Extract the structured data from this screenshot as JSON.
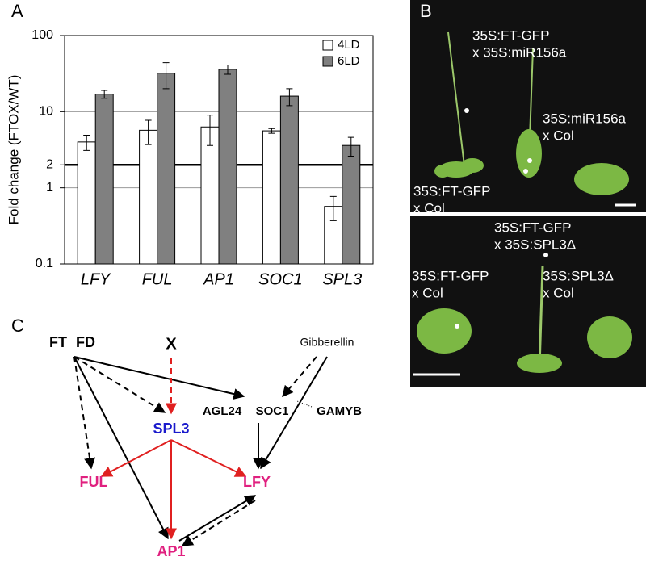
{
  "panels": [
    "A",
    "B",
    "C"
  ],
  "chart_data": {
    "type": "bar",
    "scale": "log",
    "ylabel": "Fold change (FTOX/WT)",
    "categories": [
      "LFY",
      "FUL",
      "AP1",
      "SOC1",
      "SPL3"
    ],
    "series": [
      {
        "name": "4LD",
        "color": "#ffffff",
        "values": [
          4.0,
          5.7,
          6.3,
          5.6,
          0.57
        ],
        "errors": [
          0.9,
          2.0,
          2.7,
          0.4,
          0.2
        ]
      },
      {
        "name": "6LD",
        "color": "#808080",
        "values": [
          17,
          32,
          36,
          16,
          3.6
        ],
        "errors": [
          2,
          12,
          5,
          4,
          1.0
        ]
      }
    ],
    "ylim": [
      0.1,
      100
    ],
    "yticks": [
      0.1,
      1,
      2,
      10,
      100
    ],
    "grid": true,
    "threshold_line": 2,
    "legend": "upper-right"
  },
  "photos": [
    {
      "labels": [
        [
          "35S:FT-GFP",
          "x 35S:miR156a"
        ],
        [
          "35S:miR156a",
          "x Col"
        ],
        [
          "35S:FT-GFP",
          "x Col"
        ]
      ]
    },
    {
      "labels": [
        [
          "35S:FT-GFP",
          "x 35S:SPL3Δ"
        ],
        [
          "35S:FT-GFP",
          "x Col"
        ],
        [
          "35S:SPL3Δ",
          "x Col"
        ]
      ]
    }
  ],
  "diagram": {
    "nodes": [
      {
        "label": "FT",
        "color": "#000000"
      },
      {
        "label": "FD",
        "color": "#000000"
      },
      {
        "label": "X",
        "color": "#000000"
      },
      {
        "label": "Gibberellin",
        "color": "#000000"
      },
      {
        "label": "AGL24",
        "color": "#000000"
      },
      {
        "label": "SOC1",
        "color": "#000000"
      },
      {
        "label": "GAMYB",
        "color": "#000000"
      },
      {
        "label": "SPL3",
        "color": "#1a1acc"
      },
      {
        "label": "FUL",
        "color": "#e0207f"
      },
      {
        "label": "LFY",
        "color": "#e0207f"
      },
      {
        "label": "AP1",
        "color": "#e0207f"
      }
    ]
  }
}
